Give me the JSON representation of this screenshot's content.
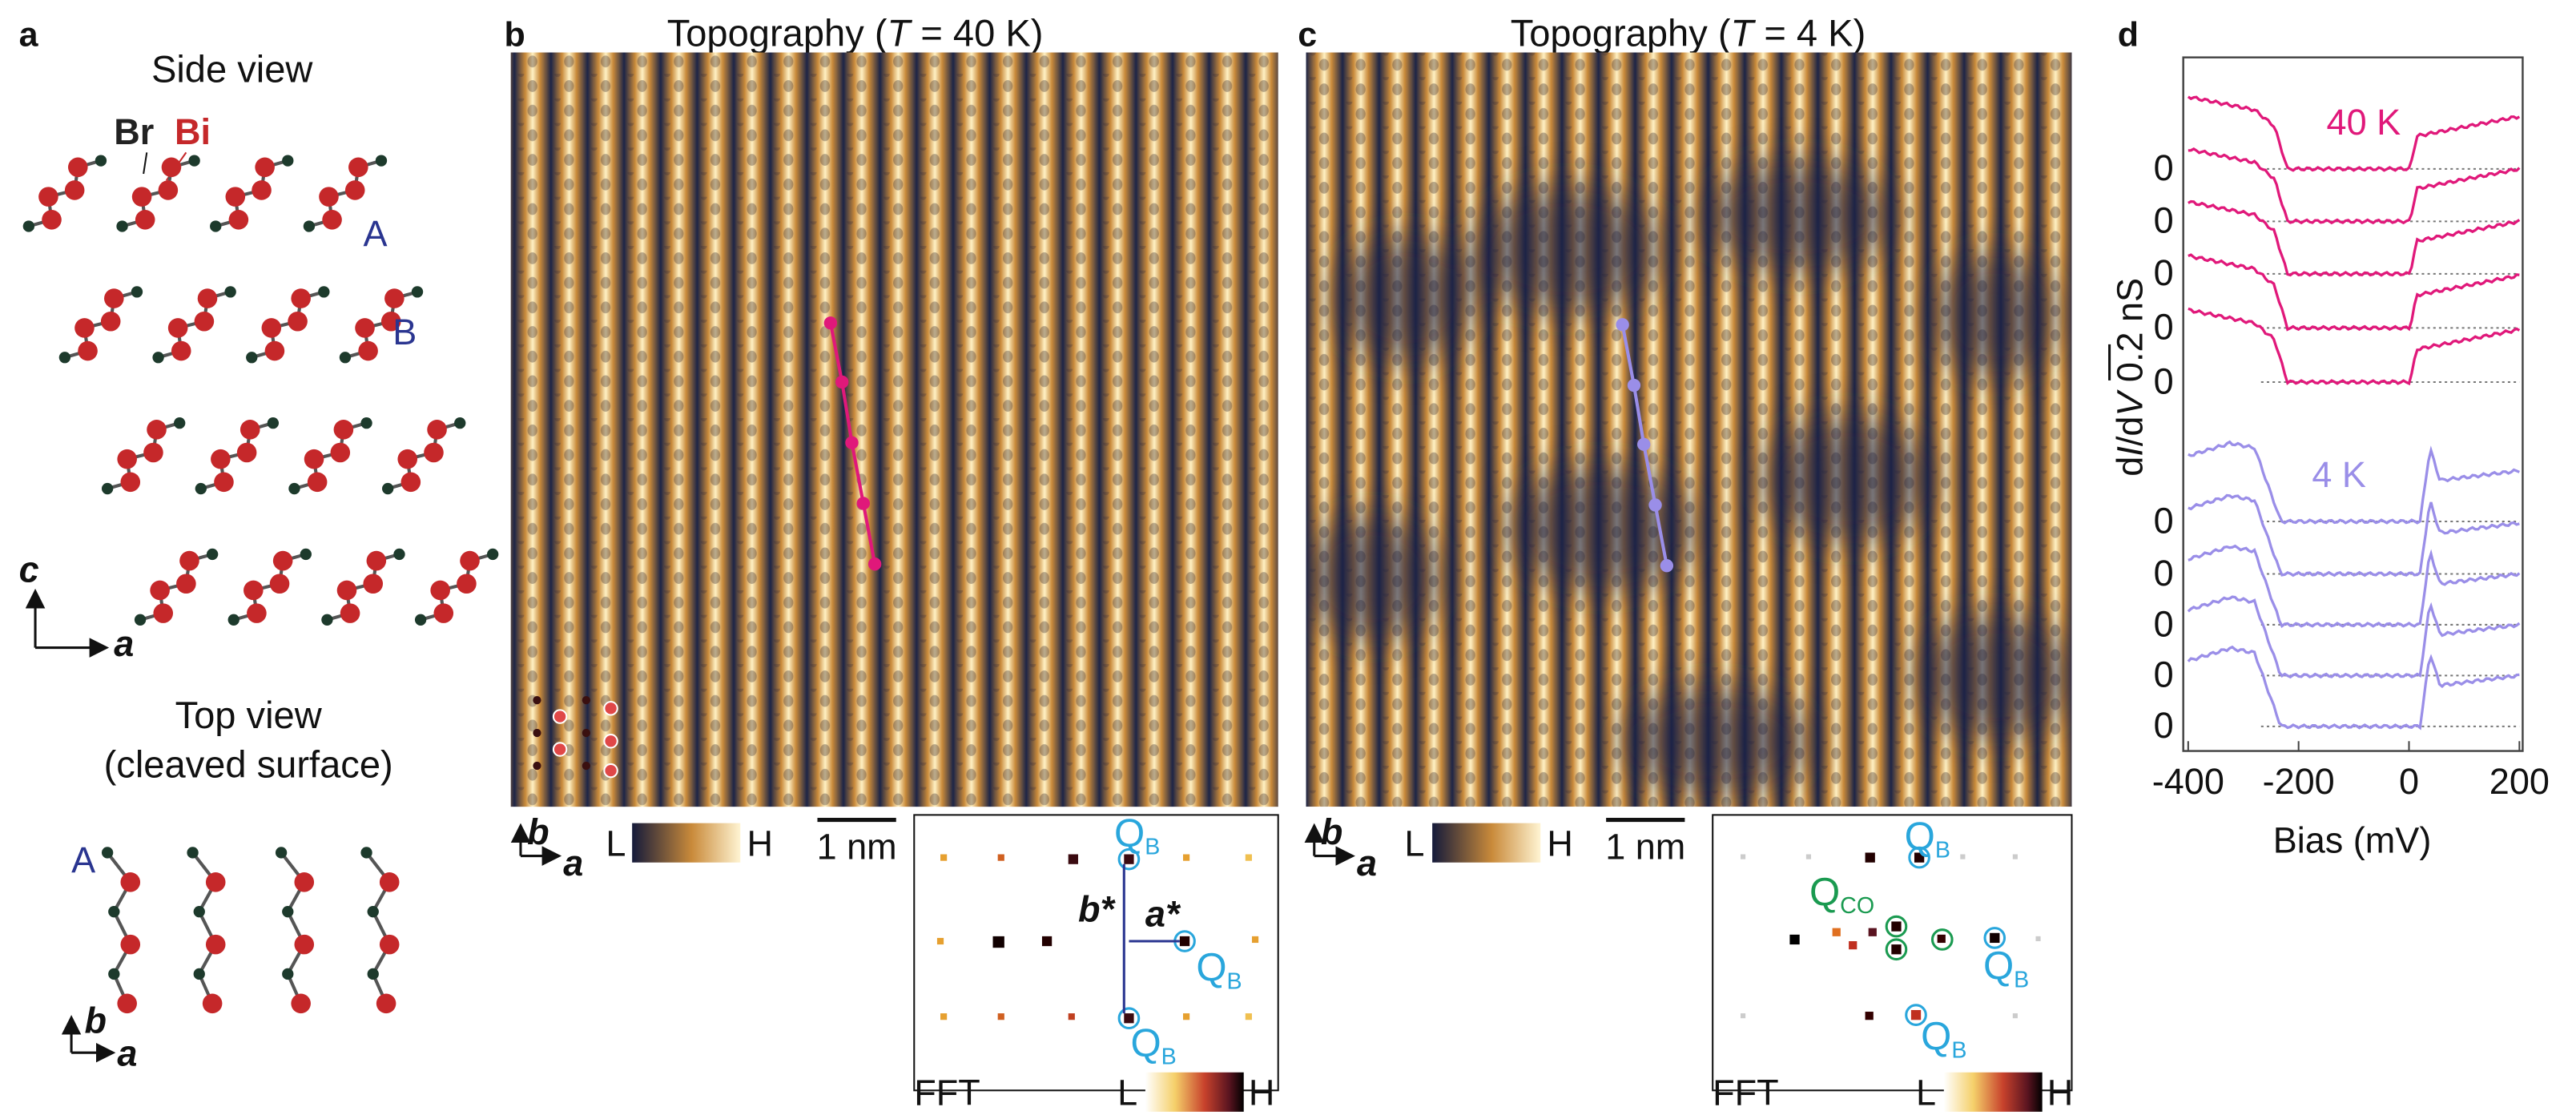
{
  "panel_a": {
    "letter": "a",
    "side_view": "Side view",
    "br": "Br",
    "bi": "Bi",
    "layer_a": "A",
    "layer_b": "B",
    "axis_c": "c",
    "axis_a": "a",
    "top_view": "Top view",
    "cleaved": "(cleaved surface)",
    "top_layer": "A",
    "axis_b2": "b",
    "axis_a2": "a"
  },
  "panel_b": {
    "letter": "b",
    "title": [
      "Topography (",
      "T",
      " = 40 K)"
    ],
    "axis_b": "b",
    "axis_a": "a",
    "cbar_low": "L",
    "cbar_high": "H",
    "scale_bar": "1 nm",
    "fft_label": "FFT",
    "fft_low": "L",
    "fft_high": "H",
    "b_star": "b*",
    "a_star": "a*",
    "q": "Q",
    "q_sub": "B"
  },
  "panel_c": {
    "letter": "c",
    "title": [
      "Topography (",
      "T",
      " = 4 K)"
    ],
    "axis_b": "b",
    "axis_a": "a",
    "cbar_low": "L",
    "cbar_high": "H",
    "scale_bar": "1 nm",
    "fft_label": "FFT",
    "fft_low": "L",
    "fft_high": "H",
    "q": "Q",
    "q_sub": "B",
    "q_co_sub": "CO"
  },
  "panel_d": {
    "letter": "d",
    "temp_high": "40 K",
    "temp_low": "4 K",
    "y_label": [
      "d",
      "I",
      "/d",
      "V",
      " 0.2 nS"
    ],
    "x_label": "Bias (mV)",
    "xlim": [
      -400,
      200
    ],
    "xticks": [
      -400,
      -200,
      0,
      200
    ],
    "baseline_labels": [
      "0",
      "0",
      "0",
      "0",
      "0",
      "0",
      "0",
      "0",
      "0",
      "0"
    ]
  }
}
